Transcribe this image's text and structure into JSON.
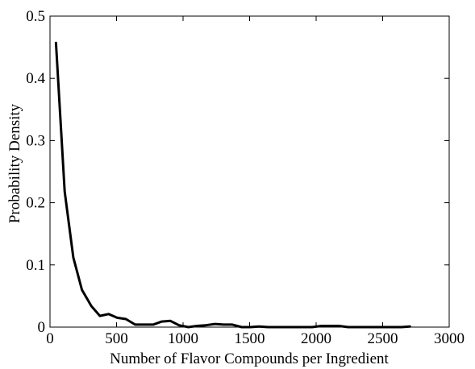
{
  "chart_data": {
    "type": "line",
    "title": "",
    "xlabel": "Number of Flavor Compounds per Ingredient",
    "ylabel": "Probability Density",
    "xlim": [
      0,
      3000
    ],
    "ylim": [
      0,
      0.5
    ],
    "xticks": [
      0,
      500,
      1000,
      1500,
      2000,
      2500,
      3000
    ],
    "xtick_labels": [
      "0",
      "500",
      "1000",
      "1500",
      "2000",
      "2500",
      "3000"
    ],
    "yticks": [
      0,
      0.1,
      0.2,
      0.3,
      0.4,
      0.5
    ],
    "ytick_labels": [
      "0",
      "0.1",
      "0.2",
      "0.3",
      "0.4",
      "0.5"
    ],
    "grid": false,
    "line_color": "#000000",
    "series": [
      {
        "x": [
          45,
          110,
          175,
          240,
          310,
          375,
          440,
          505,
          570,
          640,
          710,
          775,
          840,
          905,
          970,
          1040,
          1105,
          1170,
          1240,
          1305,
          1370,
          1440,
          1505,
          1570,
          1640,
          1705,
          1770,
          1840,
          1905,
          1970,
          2040,
          2105,
          2170,
          2240,
          2305,
          2370,
          2440,
          2505,
          2570,
          2640,
          2705
        ],
        "y": [
          0.457,
          0.218,
          0.112,
          0.06,
          0.034,
          0.018,
          0.021,
          0.015,
          0.013,
          0.004,
          0.004,
          0.004,
          0.009,
          0.01,
          0.003,
          0.0,
          0.002,
          0.003,
          0.005,
          0.004,
          0.004,
          0.0,
          0.0,
          0.001,
          0.0,
          0.0,
          0.0,
          0.0,
          0.0,
          0.0,
          0.002,
          0.002,
          0.002,
          0.0,
          0.0,
          0.0,
          0.0,
          0.0,
          0.0,
          0.0,
          0.001
        ]
      }
    ]
  }
}
